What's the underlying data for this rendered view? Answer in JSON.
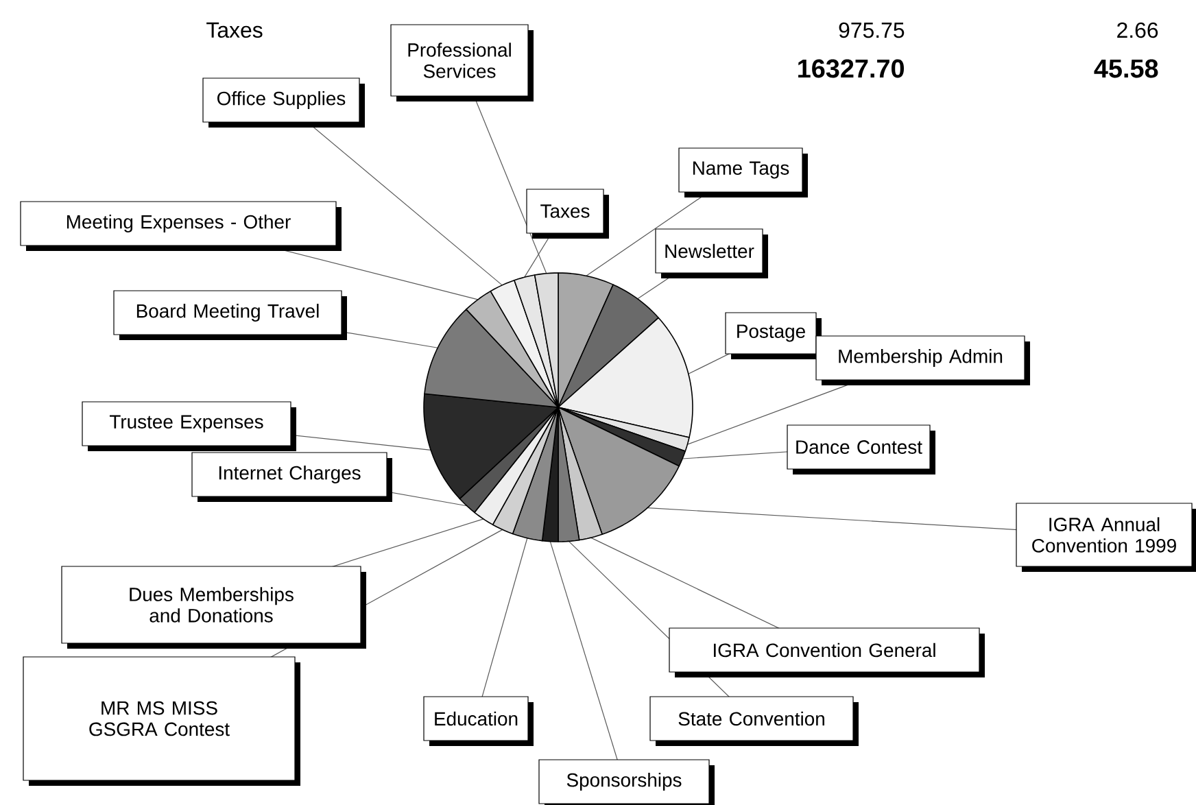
{
  "chart_data": {
    "type": "pie",
    "categories": [
      "Name Tags",
      "Newsletter",
      "Postage",
      "Membership Admin",
      "Dance Contest",
      "IGRA Annual Convention 1999",
      "IGRA Convention General",
      "State Convention",
      "Sponsorships",
      "Education",
      "MR MS MISS GSGRA Contest",
      "Dues Memberships and Donations",
      "Internet Charges",
      "Trustee Expenses",
      "Board Meeting Travel",
      "Meeting Expenses - Other",
      "Office Supplies",
      "Taxes",
      "Professional Services"
    ],
    "values": [
      6.7,
      6.7,
      15.2,
      1.7,
      1.9,
      12.5,
      2.8,
      2.5,
      1.9,
      3.6,
      2.6,
      2.6,
      2.4,
      13.5,
      11.4,
      3.6,
      3.1,
      2.5,
      2.8
    ],
    "colors": [
      "#a8a8a8",
      "#6a6a6a",
      "#f0f0f0",
      "#e4e4e4",
      "#303030",
      "#9a9a9a",
      "#c8c8c8",
      "#7a7a7a",
      "#202020",
      "#8a8a8a",
      "#d0d0d0",
      "#eeeeee",
      "#555555",
      "#2a2a2a",
      "#7a7a7a",
      "#b8b8b8",
      "#f2f2f2",
      "#e6e6e6",
      "#dddddd"
    ],
    "annotations": [
      "Taxes",
      "975.75",
      "2.66",
      "16327.70",
      "45.58"
    ]
  }
}
